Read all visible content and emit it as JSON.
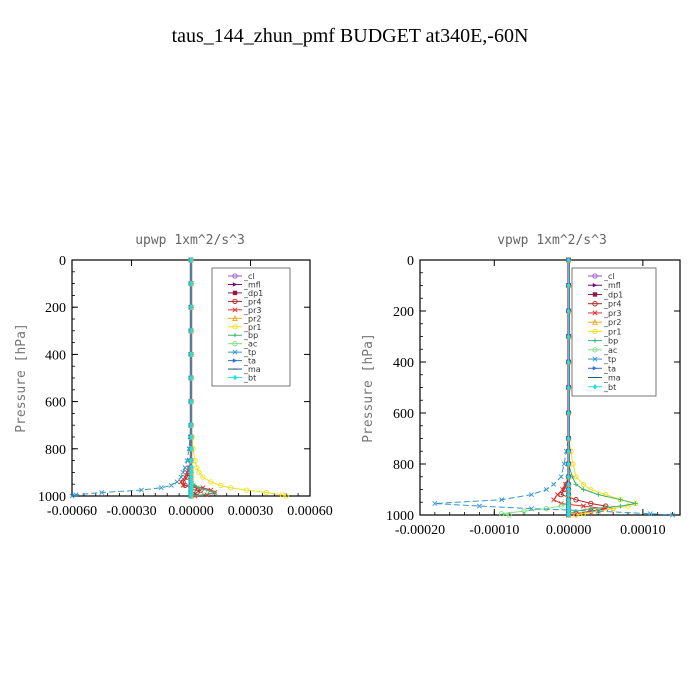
{
  "title": "taus_144_zhun_pmf  BUDGET at340E,-60N",
  "chart_data": [
    {
      "type": "line",
      "title": "upwp   1xm^2/s^3",
      "xlabel": "",
      "ylabel": "Pressure [hPa]",
      "xlim": [
        -0.0006,
        0.0006
      ],
      "ylim": [
        1000,
        0
      ],
      "xticks": [
        "-0.00060",
        "-0.00030",
        "0.00000",
        "0.00030",
        "0.00060"
      ],
      "xtick_values": [
        -0.0006,
        -0.0003,
        0,
        0.0003,
        0.0006
      ],
      "yticks": [
        "0",
        "200",
        "400",
        "600",
        "800",
        "1000"
      ],
      "ytick_values": [
        0,
        200,
        400,
        600,
        800,
        1000
      ],
      "legend_position": "top-right",
      "y": [
        0,
        100,
        200,
        300,
        400,
        500,
        600,
        700,
        750,
        800,
        850,
        880,
        900,
        920,
        940,
        955,
        965,
        975,
        985,
        995,
        1000
      ],
      "series": [
        {
          "name": "_cl",
          "color": "#9b59c6",
          "marker": "o",
          "values": [
            0,
            0,
            0,
            0,
            0,
            0,
            0,
            0,
            0,
            0,
            0,
            0,
            0,
            0,
            0,
            0,
            0,
            0,
            0,
            0,
            0
          ]
        },
        {
          "name": "_mfl",
          "color": "#6a0d6a",
          "marker": ">",
          "values": [
            0,
            0,
            0,
            0,
            0,
            0,
            0,
            0,
            0,
            0,
            0,
            0,
            0,
            0,
            0,
            0,
            0,
            0,
            0,
            0,
            0
          ]
        },
        {
          "name": "_dp1",
          "color": "#8b1a4a",
          "marker": "s",
          "values": [
            0,
            0,
            0,
            0,
            0,
            0,
            0,
            0,
            0,
            0,
            0,
            0,
            0,
            0,
            0,
            0,
            0,
            0,
            0,
            0,
            0
          ]
        },
        {
          "name": "_pr4",
          "color": "#b22222",
          "marker": "o",
          "values": [
            0,
            0,
            0,
            0,
            0,
            0,
            0,
            0,
            0,
            0,
            0,
            -5e-06,
            -1e-05,
            -2e-05,
            -4e-05,
            -3e-05,
            2e-05,
            5e-05,
            3e-05,
            1e-05,
            0
          ]
        },
        {
          "name": "_pr3",
          "color": "#e03030",
          "marker": "x",
          "values": [
            0,
            0,
            0,
            0,
            0,
            0,
            0,
            0,
            0,
            0,
            0,
            -1e-05,
            -2e-05,
            -3e-05,
            -5e-05,
            -4e-05,
            6e-05,
            0.0001,
            0.00012,
            8e-05,
            2e-05
          ]
        },
        {
          "name": "_pr2",
          "color": "#f5a623",
          "marker": "^",
          "values": [
            0,
            0,
            0,
            0,
            0,
            0,
            0,
            0,
            0,
            0,
            0,
            0,
            0,
            0,
            0,
            0,
            0,
            0,
            0,
            0,
            0
          ]
        },
        {
          "name": "_pr1",
          "color": "#f0e020",
          "marker": "o",
          "values": [
            0,
            0,
            0,
            0,
            0,
            0,
            0,
            0,
            5e-06,
            1e-05,
            2e-05,
            3e-05,
            4e-05,
            6e-05,
            0.0001,
            0.00015,
            0.0002,
            0.00028,
            0.00038,
            0.00046,
            0.00048
          ]
        },
        {
          "name": "_bp",
          "color": "#3cb371",
          "marker": "+",
          "values": [
            0,
            0,
            0,
            0,
            0,
            0,
            0,
            0,
            0,
            0,
            0,
            0,
            0,
            0,
            0,
            2e-05,
            4e-05,
            8e-05,
            0.00012,
            6e-05,
            0
          ]
        },
        {
          "name": "_ac",
          "color": "#7fe07f",
          "marker": "o",
          "values": [
            0,
            0,
            0,
            0,
            0,
            0,
            0,
            0,
            0,
            0,
            0,
            0,
            0,
            0,
            0,
            0,
            0,
            0,
            0,
            0,
            0
          ]
        },
        {
          "name": "_tp",
          "color": "#3399cc",
          "marker": "x",
          "values": [
            0,
            0,
            0,
            0,
            0,
            0,
            0,
            0,
            -5e-06,
            -1e-05,
            -2e-05,
            -3e-05,
            -4e-05,
            -5e-05,
            -7e-05,
            -0.0001,
            -0.00015,
            -0.00025,
            -0.00045,
            -0.00058,
            -0.0006
          ]
        },
        {
          "name": "_ta",
          "color": "#2c6fd6",
          "marker": ">",
          "values": [
            0,
            0,
            0,
            0,
            0,
            0,
            0,
            0,
            0,
            0,
            0,
            0,
            0,
            0,
            0,
            0,
            0,
            0,
            0,
            0,
            0
          ]
        },
        {
          "name": "_ma",
          "color": "#1a5a8a",
          "marker": "-",
          "values": [
            0,
            0,
            0,
            0,
            0,
            0,
            0,
            0,
            0,
            0,
            0,
            0,
            0,
            0,
            0,
            0,
            0,
            0,
            0,
            0,
            0
          ]
        },
        {
          "name": "_bt",
          "color": "#20e0e0",
          "marker": "d",
          "values": [
            0,
            0,
            0,
            0,
            0,
            0,
            0,
            0,
            0,
            0,
            0,
            0,
            0,
            0,
            0,
            0,
            0,
            0,
            0,
            0,
            0
          ]
        }
      ]
    },
    {
      "type": "line",
      "title": "vpwp   1xm^2/s^3",
      "xlabel": "",
      "ylabel": "Pressure [hPa]",
      "xlim": [
        -0.0002,
        0.00015
      ],
      "ylim": [
        1000,
        0
      ],
      "xticks": [
        "-0.00020",
        "-0.00010",
        "0.00000",
        "0.00010"
      ],
      "xtick_values": [
        -0.0002,
        -0.0001,
        0,
        0.0001
      ],
      "yticks": [
        "0",
        "200",
        "400",
        "600",
        "800",
        "1000"
      ],
      "ytick_values": [
        0,
        200,
        400,
        600,
        800,
        1000
      ],
      "legend_position": "top-right",
      "y": [
        0,
        100,
        200,
        300,
        400,
        500,
        600,
        700,
        750,
        800,
        850,
        880,
        900,
        920,
        940,
        955,
        965,
        975,
        985,
        995,
        1000
      ],
      "series": [
        {
          "name": "_cl",
          "color": "#9b59c6",
          "marker": "o",
          "values": [
            0,
            0,
            0,
            0,
            0,
            0,
            0,
            0,
            0,
            0,
            0,
            0,
            0,
            0,
            0,
            0,
            0,
            0,
            0,
            0,
            0
          ]
        },
        {
          "name": "_mfl",
          "color": "#6a0d6a",
          "marker": ">",
          "values": [
            0,
            0,
            0,
            0,
            0,
            0,
            0,
            0,
            0,
            0,
            0,
            0,
            0,
            0,
            0,
            0,
            0,
            0,
            0,
            0,
            0
          ]
        },
        {
          "name": "_dp1",
          "color": "#8b1a4a",
          "marker": "s",
          "values": [
            0,
            0,
            0,
            0,
            0,
            0,
            0,
            0,
            0,
            0,
            0,
            0,
            0,
            0,
            0,
            0,
            0,
            0,
            0,
            0,
            0
          ]
        },
        {
          "name": "_pr4",
          "color": "#b22222",
          "marker": "o",
          "values": [
            0,
            0,
            0,
            0,
            0,
            0,
            0,
            0,
            0,
            0,
            0,
            -3e-06,
            -6e-06,
            -1e-05,
            1e-05,
            3e-05,
            5e-05,
            6e-05,
            3e-05,
            1e-05,
            0
          ]
        },
        {
          "name": "_pr3",
          "color": "#e03030",
          "marker": "x",
          "values": [
            0,
            0,
            0,
            0,
            0,
            0,
            0,
            0,
            0,
            0,
            0,
            -4e-06,
            -8e-06,
            -1.5e-05,
            -2e-05,
            -1e-05,
            2e-05,
            5e-05,
            3e-05,
            1e-05,
            0
          ]
        },
        {
          "name": "_pr2",
          "color": "#f5a623",
          "marker": "^",
          "values": [
            0,
            0,
            0,
            0,
            0,
            0,
            0,
            0,
            0,
            0,
            0,
            0,
            0,
            0,
            0,
            0,
            0,
            0,
            0,
            0,
            0
          ]
        },
        {
          "name": "_pr1",
          "color": "#f0e020",
          "marker": "o",
          "values": [
            0,
            0,
            0,
            0,
            0,
            0,
            0,
            0,
            3e-06,
            6e-06,
            1e-05,
            2e-05,
            3e-05,
            5e-05,
            7e-05,
            9e-05,
            8e-05,
            6e-05,
            4e-05,
            2e-05,
            1e-05
          ]
        },
        {
          "name": "_bp",
          "color": "#3cb371",
          "marker": "+",
          "values": [
            0,
            0,
            0,
            0,
            0,
            0,
            0,
            0,
            0,
            0,
            5e-06,
            1e-05,
            2e-05,
            4e-05,
            7e-05,
            9e-05,
            7e-05,
            3e-05,
            1e-05,
            0,
            0
          ]
        },
        {
          "name": "_ac",
          "color": "#7fe07f",
          "marker": "o",
          "values": [
            0,
            0,
            0,
            0,
            0,
            0,
            0,
            0,
            0,
            0,
            0,
            0,
            0,
            0,
            0,
            0,
            -1e-05,
            -3e-05,
            -6e-05,
            -9e-05,
            -8e-05
          ]
        },
        {
          "name": "_tp",
          "color": "#3399cc",
          "marker": "x",
          "values": [
            0,
            0,
            0,
            0,
            0,
            0,
            0,
            0,
            -3e-06,
            -6e-06,
            -1e-05,
            -2e-05,
            -3e-05,
            -5e-05,
            -9e-05,
            -0.00018,
            -0.00012,
            -5e-05,
            4e-05,
            0.00011,
            0.00014
          ]
        },
        {
          "name": "_ta",
          "color": "#2c6fd6",
          "marker": ">",
          "values": [
            0,
            0,
            0,
            0,
            0,
            0,
            0,
            0,
            0,
            0,
            0,
            0,
            0,
            0,
            0,
            0,
            0,
            0,
            0,
            0,
            0
          ]
        },
        {
          "name": "_ma",
          "color": "#1a5a8a",
          "marker": "-",
          "values": [
            0,
            0,
            0,
            0,
            0,
            0,
            0,
            0,
            0,
            0,
            0,
            0,
            0,
            0,
            0,
            0,
            0,
            0,
            0,
            0,
            0
          ]
        },
        {
          "name": "_bt",
          "color": "#20e0e0",
          "marker": "d",
          "values": [
            0,
            0,
            0,
            0,
            0,
            0,
            0,
            0,
            0,
            0,
            0,
            0,
            0,
            0,
            0,
            0,
            0,
            0,
            0,
            0,
            0
          ]
        }
      ]
    }
  ]
}
